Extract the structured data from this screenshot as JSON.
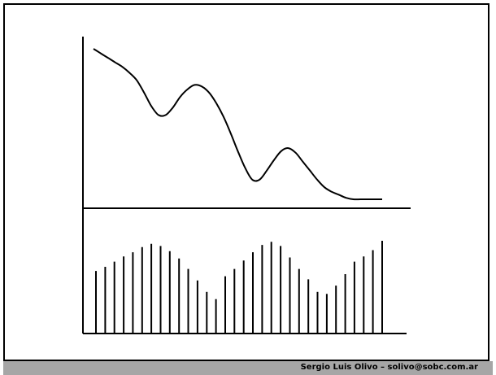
{
  "footer": {
    "text": "Sergio Luis Olivo – solivo@sobc.com.ar"
  },
  "colors": {
    "line": "#000000",
    "footer_bar": "#a6a6a6",
    "background": "#ffffff"
  },
  "chart_data": [
    {
      "type": "line",
      "x": [
        0,
        1,
        2,
        3,
        4,
        5,
        6,
        7,
        8,
        9,
        10,
        11,
        12,
        13,
        14,
        15,
        16,
        17,
        18,
        19,
        20,
        21,
        22,
        23,
        24,
        25,
        26,
        27,
        28,
        29,
        30,
        31,
        32,
        33,
        34,
        35,
        36,
        37,
        38,
        39,
        40
      ],
      "y": [
        100,
        97,
        94,
        91,
        88,
        84,
        79,
        71,
        62,
        56,
        56,
        61,
        68,
        73,
        76,
        75,
        71,
        64,
        55,
        44,
        32,
        21,
        13,
        13,
        19,
        26,
        32,
        34,
        31,
        25,
        19,
        13,
        8,
        5,
        3,
        1,
        0,
        0,
        0,
        0,
        0
      ],
      "title": "",
      "xlabel": "",
      "ylabel": "",
      "grid": false,
      "legend": "none"
    },
    {
      "type": "bar",
      "values": [
        60,
        64,
        69,
        74,
        78,
        83,
        86,
        84,
        79,
        72,
        62,
        51,
        40,
        33,
        55,
        62,
        70,
        78,
        85,
        88,
        84,
        73,
        62,
        52,
        40,
        38,
        46,
        57,
        69,
        74,
        80,
        89
      ],
      "title": "",
      "xlabel": "",
      "ylabel": "",
      "grid": false,
      "legend": "none"
    }
  ]
}
